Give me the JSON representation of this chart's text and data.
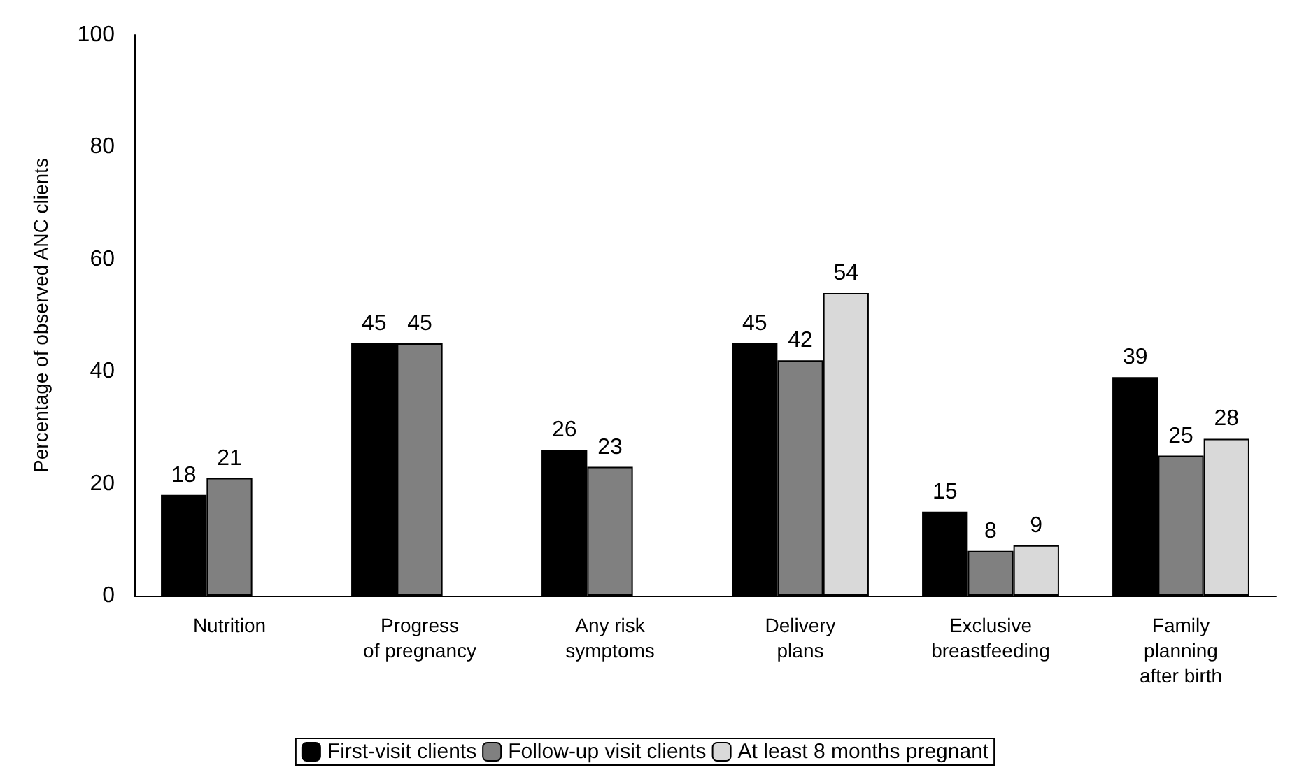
{
  "chart_data": {
    "type": "bar",
    "ylabel": "Percentage of observed ANC clients",
    "categories": [
      "Nutrition",
      "Progress\nof pregnancy",
      "Any risk\nsymptoms",
      "Delivery\nplans",
      "Exclusive\nbreastfeeding",
      "Family\nplanning\nafter birth"
    ],
    "series": [
      {
        "name": "First-visit clients",
        "color": "#000000",
        "values": [
          18,
          45,
          26,
          45,
          15,
          39
        ]
      },
      {
        "name": "Follow-up visit clients",
        "color": "#808080",
        "values": [
          21,
          45,
          23,
          42,
          8,
          25
        ]
      },
      {
        "name": "At least 8 months pregnant",
        "color": "#d9d9d9",
        "values": [
          null,
          null,
          null,
          54,
          9,
          28
        ]
      }
    ],
    "ylim": [
      0,
      100
    ],
    "yticks": [
      0,
      20,
      40,
      60,
      80,
      100
    ],
    "grid": false,
    "legend": "bottom",
    "data_labels": true
  }
}
